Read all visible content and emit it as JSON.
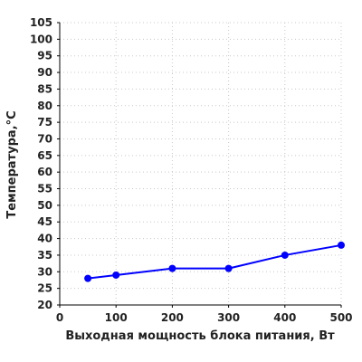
{
  "chart_data": {
    "type": "line",
    "xlabel": "Выходная мощность блока питания, Вт",
    "ylabel": "Температура,°C",
    "xlim": [
      0,
      500
    ],
    "ylim": [
      20,
      105
    ],
    "x_ticks": [
      0,
      100,
      200,
      300,
      400,
      500
    ],
    "y_ticks": [
      20,
      25,
      30,
      35,
      40,
      45,
      50,
      55,
      60,
      65,
      70,
      75,
      80,
      85,
      90,
      95,
      100,
      105
    ],
    "grid": true,
    "series": [
      {
        "color": "#0000ff",
        "marker": "circle",
        "x": [
          50,
          100,
          200,
          300,
          400,
          500
        ],
        "y": [
          28,
          29,
          31,
          31,
          35,
          38
        ]
      }
    ]
  }
}
